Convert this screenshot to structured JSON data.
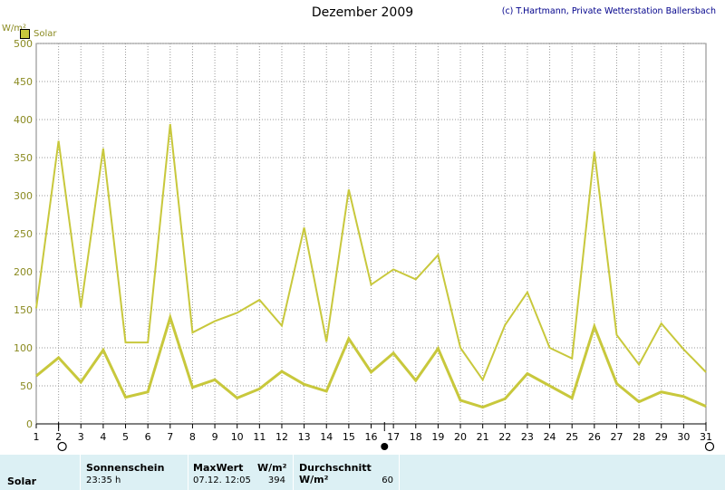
{
  "title": "Dezember 2009",
  "copyright": "(c) T.Hartmann, Private Wetterstation Ballersbach",
  "unit_label": "W/m²",
  "legend": {
    "label": "Solar",
    "color": "#c8c83c"
  },
  "chart_data": {
    "type": "line",
    "title": "Dezember 2009",
    "ylabel": "W/m²",
    "ylim": [
      0,
      500
    ],
    "yticks": [
      0,
      50,
      100,
      150,
      200,
      250,
      300,
      350,
      400,
      450,
      500
    ],
    "x": [
      1,
      2,
      3,
      4,
      5,
      6,
      7,
      8,
      9,
      10,
      11,
      12,
      13,
      14,
      15,
      16,
      17,
      18,
      19,
      20,
      21,
      22,
      23,
      24,
      25,
      26,
      27,
      28,
      29,
      30,
      31
    ],
    "grid": true,
    "legend_position": "top-left",
    "series": [
      {
        "name": "Solar",
        "style": "max",
        "values": [
          152,
          372,
          153,
          362,
          107,
          107,
          394,
          120,
          135,
          146,
          163,
          129,
          258,
          108,
          308,
          183,
          203,
          190,
          222,
          100,
          58,
          130,
          173,
          100,
          86,
          358,
          117,
          78,
          132,
          98,
          68
        ]
      },
      {
        "name": "Solar",
        "style": "mean",
        "values": [
          63,
          87,
          55,
          97,
          35,
          42,
          140,
          48,
          58,
          34,
          46,
          69,
          52,
          43,
          112,
          68,
          93,
          57,
          99,
          31,
          22,
          33,
          66,
          50,
          34,
          128,
          53,
          29,
          42,
          36,
          23
        ]
      }
    ],
    "markers": [
      {
        "x": 2,
        "symbol": "open-circle"
      },
      {
        "x": 16.6,
        "symbol": "filled-circle"
      },
      {
        "x": 31,
        "symbol": "open-circle"
      }
    ]
  },
  "summary": {
    "series_label": "Solar",
    "sun_heading": "Sonnenschein",
    "sun_value": "23:35 h",
    "max_heading": "MaxWert",
    "max_unit": "W/m²",
    "max_time": "07.12.  12:05",
    "max_value": "394",
    "avg_heading": "Durchschnitt W/m²",
    "avg_value": "60"
  }
}
